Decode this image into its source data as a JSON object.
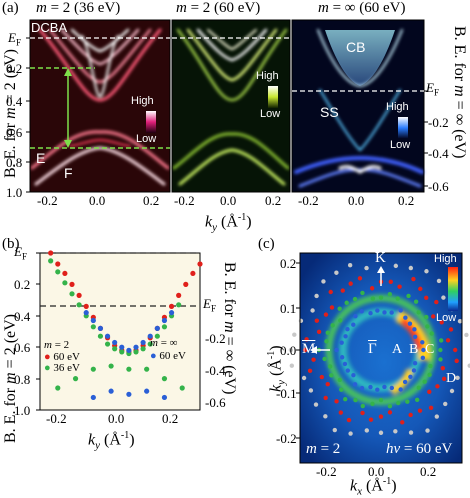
{
  "panel_a": {
    "letter": "(a)",
    "titles": [
      "m = 2 (36 eV)",
      "m = 2 (60 eV)",
      "m = ∞ (60 eV)"
    ],
    "ylabel_left": "B. E. for m = 2 (eV)",
    "ylabel_right": "B. E. for m = ∞ (eV)",
    "xlabel": "k_y (Å⁻¹)",
    "yticks_left": [
      "E_F",
      "0.2",
      "0.4",
      "0.6",
      "0.8",
      "1.0"
    ],
    "yticks_right": [
      "E_F",
      "0.2",
      "0.4",
      "0.6"
    ],
    "xticks": [
      "-0.2",
      "0.0",
      "0.2"
    ],
    "labels": {
      "dcba": "DCBA",
      "e": "E",
      "f": "F",
      "cb": "CB",
      "ss": "SS"
    },
    "colorbar_high": "High",
    "colorbar_low": "Low"
  },
  "panel_b": {
    "letter": "(b)",
    "ylabel_left": "B. E. for m = 2 (eV)",
    "ylabel_right": "B. E. for m = ∞ (eV)",
    "xlabel": "k_y (Å⁻¹)",
    "legend_m2": "m = 2",
    "legend_60": "60 eV",
    "legend_36": "36 eV",
    "legend_minf": "m = ∞",
    "legend_minf_60": "60 eV",
    "colors": {
      "m2_60": "#e0201b",
      "m2_36": "#34b34a",
      "minf_60": "#2a5fd6"
    }
  },
  "panel_c": {
    "letter": "(c)",
    "ylabel": "k_y (Å⁻¹)",
    "xlabel": "k_x (Å⁻¹)",
    "k_bar": "K",
    "m_bar": "M",
    "gamma_bar": "Γ",
    "rings": [
      "A",
      "B",
      "C",
      "D"
    ],
    "caption_m": "m = 2",
    "caption_hv": "hν = 60 eV",
    "colorbar_high": "High",
    "colorbar_low": "Low"
  },
  "chart_data": [
    {
      "type": "heatmap",
      "title": "m = 2 (36 eV)",
      "xlabel": "k_y (Å⁻¹)",
      "ylabel": "B. E. for m = 2 (eV)",
      "xlim": [
        -0.25,
        0.25
      ],
      "ylim": [
        1.0,
        0.0
      ]
    },
    {
      "type": "heatmap",
      "title": "m = 2 (60 eV)",
      "xlabel": "k_y (Å⁻¹)",
      "xlim": [
        -0.25,
        0.25
      ],
      "ylim": [
        1.0,
        0.0
      ]
    },
    {
      "type": "heatmap",
      "title": "m = ∞ (60 eV)",
      "xlabel": "k_y (Å⁻¹)",
      "ylabel": "B. E. for m = ∞ (eV)",
      "xlim": [
        -0.25,
        0.25
      ],
      "ylim": [
        0.65,
        -0.35
      ]
    },
    {
      "type": "scatter",
      "xlabel": "k_y (Å⁻¹)",
      "ylabel": "B. E. for m = 2 (eV)",
      "xlim": [
        -0.25,
        0.2
      ],
      "ylim": [
        1.0,
        0.0
      ],
      "series": [
        {
          "name": "m = 2 60 eV",
          "color": "#e0201b",
          "points": [
            [
              -0.22,
              0.0
            ],
            [
              -0.2,
              0.07
            ],
            [
              -0.18,
              0.13
            ],
            [
              -0.16,
              0.2
            ],
            [
              -0.14,
              0.27
            ],
            [
              -0.12,
              0.34
            ],
            [
              -0.1,
              0.41
            ],
            [
              -0.08,
              0.48
            ],
            [
              -0.06,
              0.54
            ],
            [
              -0.04,
              0.59
            ],
            [
              -0.02,
              0.62
            ],
            [
              0.0,
              0.63
            ],
            [
              0.02,
              0.62
            ],
            [
              0.04,
              0.59
            ],
            [
              0.06,
              0.54
            ],
            [
              0.08,
              0.48
            ],
            [
              0.1,
              0.41
            ],
            [
              0.12,
              0.34
            ],
            [
              0.14,
              0.27
            ],
            [
              0.16,
              0.2
            ],
            [
              0.18,
              0.13
            ],
            [
              0.2,
              0.07
            ]
          ]
        },
        {
          "name": "m = 2 36 eV",
          "color": "#34b34a",
          "points": [
            [
              -0.22,
              0.05
            ],
            [
              -0.2,
              0.12
            ],
            [
              -0.18,
              0.19
            ],
            [
              -0.16,
              0.26
            ],
            [
              -0.14,
              0.33
            ],
            [
              -0.12,
              0.4
            ],
            [
              -0.1,
              0.47
            ],
            [
              -0.08,
              0.53
            ],
            [
              -0.06,
              0.58
            ],
            [
              -0.04,
              0.61
            ],
            [
              -0.02,
              0.63
            ],
            [
              0.0,
              0.64
            ],
            [
              0.02,
              0.63
            ],
            [
              0.04,
              0.61
            ],
            [
              0.06,
              0.58
            ],
            [
              0.08,
              0.53
            ],
            [
              0.1,
              0.47
            ],
            [
              0.12,
              0.4
            ],
            [
              0.14,
              0.33
            ],
            [
              -0.2,
              0.86
            ],
            [
              -0.15,
              0.8
            ],
            [
              -0.1,
              0.74
            ],
            [
              -0.05,
              0.72
            ],
            [
              0.0,
              0.74
            ],
            [
              0.05,
              0.74
            ],
            [
              0.1,
              0.8
            ],
            [
              0.15,
              0.86
            ]
          ]
        },
        {
          "name": "m = ∞ 60 eV",
          "color": "#2a5fd6",
          "points": [
            [
              -0.12,
              0.38
            ],
            [
              -0.1,
              0.43
            ],
            [
              -0.08,
              0.48
            ],
            [
              -0.06,
              0.53
            ],
            [
              -0.04,
              0.57
            ],
            [
              -0.02,
              0.6
            ],
            [
              0.0,
              0.62
            ],
            [
              0.02,
              0.6
            ],
            [
              0.04,
              0.57
            ],
            [
              0.06,
              0.53
            ],
            [
              0.08,
              0.48
            ],
            [
              0.1,
              0.43
            ],
            [
              0.12,
              0.38
            ],
            [
              -0.1,
              0.92
            ],
            [
              -0.05,
              0.88
            ],
            [
              0.0,
              0.9
            ],
            [
              0.05,
              0.88
            ],
            [
              0.1,
              0.92
            ]
          ]
        }
      ]
    },
    {
      "type": "heatmap",
      "xlabel": "k_x (Å⁻¹)",
      "ylabel": "k_y (Å⁻¹)",
      "xlim": [
        -0.3,
        0.3
      ],
      "ylim": [
        -0.3,
        0.3
      ]
    }
  ]
}
